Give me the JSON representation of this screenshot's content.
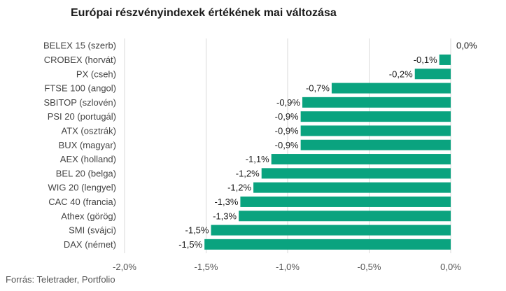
{
  "title": "Európai részvényindexek értékének mai változása",
  "source": "Forrás: Teletrader, Portfolio",
  "chart_data": {
    "type": "bar",
    "orientation": "horizontal",
    "title": "Európai részvényindexek értékének mai változása",
    "xlabel": "",
    "ylabel": "",
    "xlim": [
      -2.0,
      0.0
    ],
    "xticks": [
      -2.0,
      -1.5,
      -1.0,
      -0.5,
      0.0
    ],
    "xtick_labels": [
      "-2,0%",
      "-1,5%",
      "-1,0%",
      "-0,5%",
      "0,0%"
    ],
    "grid": true,
    "bar_color": "#0aa37f",
    "categories": [
      "BELEX 15 (szerb)",
      "CROBEX (horvát)",
      "PX (cseh)",
      "FTSE 100 (angol)",
      "SBITOP (szlovén)",
      "PSI 20 (portugál)",
      "ATX (osztrák)",
      "BUX (magyar)",
      "AEX (holland)",
      "BEL 20 (belga)",
      "WIG 20 (lengyel)",
      "CAC 40 (francia)",
      "Athex (görög)",
      "SMI (svájci)",
      "DAX (német)"
    ],
    "values": [
      0.0,
      -0.07,
      -0.22,
      -0.73,
      -0.91,
      -0.92,
      -0.92,
      -0.92,
      -1.1,
      -1.16,
      -1.21,
      -1.29,
      -1.3,
      -1.47,
      -1.51
    ],
    "value_labels": [
      "0,0%",
      "-0,1%",
      "-0,2%",
      "-0,7%",
      "-0,9%",
      "-0,9%",
      "-0,9%",
      "-0,9%",
      "-1,1%",
      "-1,2%",
      "-1,2%",
      "-1,3%",
      "-1,3%",
      "-1,5%",
      "-1,5%"
    ]
  }
}
